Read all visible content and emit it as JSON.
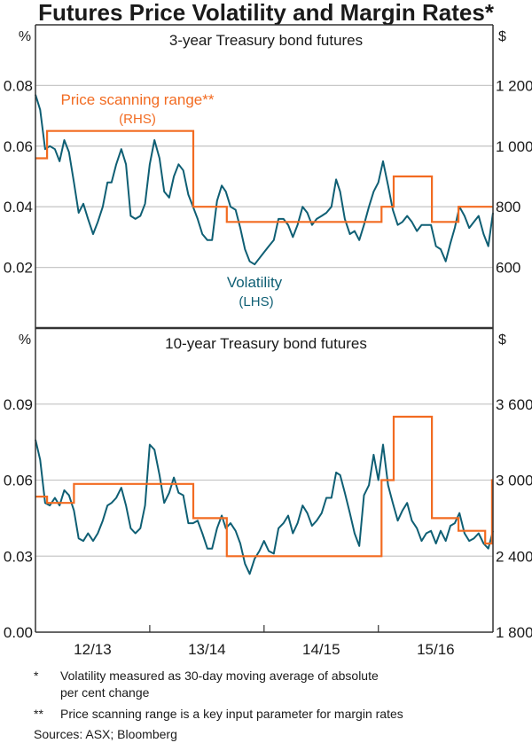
{
  "title": "Futures Price Volatility and Margin Rates*",
  "colors": {
    "volatility": "#0f5f74",
    "price_scanning_range": "#f26b21",
    "grid": "#c8c8c8",
    "axis": "#333333"
  },
  "chart_data": [
    {
      "type": "line",
      "title": "3-year Treasury bond futures",
      "left_unit": "%",
      "right_unit": "$",
      "left_ylim": [
        0,
        0.1
      ],
      "right_ylim": [
        400,
        1400
      ],
      "left_ticks": [
        "0.08",
        "0.06",
        "0.04",
        "0.02"
      ],
      "left_tick_values": [
        0.08,
        0.06,
        0.04,
        0.02
      ],
      "right_ticks": [
        "1 200",
        "1 000",
        "800",
        "600"
      ],
      "grid": true,
      "annotations": {
        "psr": "Price scanning range**",
        "psr_side": "(RHS)",
        "vol": "Volatility",
        "vol_side": "(LHS)"
      },
      "series": [
        {
          "name": "Volatility",
          "axis": "left",
          "values": [
            0.077,
            0.072,
            0.059,
            0.06,
            0.059,
            0.055,
            0.062,
            0.058,
            0.048,
            0.038,
            0.041,
            0.036,
            0.031,
            0.035,
            0.04,
            0.048,
            0.048,
            0.054,
            0.059,
            0.054,
            0.037,
            0.036,
            0.037,
            0.041,
            0.054,
            0.062,
            0.056,
            0.045,
            0.043,
            0.05,
            0.054,
            0.052,
            0.044,
            0.04,
            0.036,
            0.031,
            0.029,
            0.029,
            0.042,
            0.047,
            0.045,
            0.04,
            0.039,
            0.033,
            0.026,
            0.022,
            0.021,
            0.023,
            0.025,
            0.027,
            0.029,
            0.036,
            0.036,
            0.034,
            0.03,
            0.034,
            0.04,
            0.038,
            0.034,
            0.036,
            0.037,
            0.038,
            0.04,
            0.049,
            0.045,
            0.036,
            0.031,
            0.032,
            0.029,
            0.034,
            0.04,
            0.045,
            0.048,
            0.055,
            0.047,
            0.039,
            0.034,
            0.035,
            0.037,
            0.035,
            0.032,
            0.034,
            0.034,
            0.034,
            0.027,
            0.026,
            0.022,
            0.028,
            0.033,
            0.04,
            0.037,
            0.033,
            0.035,
            0.037,
            0.031,
            0.027,
            0.038
          ]
        },
        {
          "name": "Price scanning range",
          "axis": "right",
          "step": true,
          "steps": [
            [
              "2012-07-01",
              960
            ],
            [
              "2012-08-07",
              1050
            ],
            [
              "2013-11-17",
              800
            ],
            [
              "2014-03-04",
              750
            ],
            [
              "2015-07-11",
              800
            ],
            [
              "2015-08-19",
              900
            ],
            [
              "2015-12-19",
              750
            ],
            [
              "2016-03-13",
              800
            ]
          ]
        }
      ]
    },
    {
      "type": "line",
      "title": "10-year Treasury bond futures",
      "left_unit": "%",
      "right_unit": "$",
      "left_ylim": [
        0,
        0.12
      ],
      "right_ylim": [
        1800,
        4200
      ],
      "left_ticks": [
        "0.09",
        "0.06",
        "0.03",
        "0.00"
      ],
      "left_tick_values": [
        0.09,
        0.06,
        0.03,
        0.0
      ],
      "right_ticks": [
        "3 600",
        "3 000",
        "2 400",
        "1 800"
      ],
      "grid": true,
      "x_ticks": [
        "12/13",
        "13/14",
        "14/15",
        "15/16"
      ],
      "series": [
        {
          "name": "Volatility",
          "axis": "left",
          "values": [
            0.076,
            0.068,
            0.051,
            0.05,
            0.053,
            0.05,
            0.056,
            0.054,
            0.048,
            0.037,
            0.036,
            0.039,
            0.036,
            0.039,
            0.044,
            0.05,
            0.051,
            0.053,
            0.057,
            0.05,
            0.041,
            0.039,
            0.041,
            0.05,
            0.074,
            0.072,
            0.062,
            0.051,
            0.055,
            0.061,
            0.055,
            0.054,
            0.043,
            0.043,
            0.044,
            0.039,
            0.033,
            0.033,
            0.041,
            0.046,
            0.041,
            0.043,
            0.04,
            0.035,
            0.027,
            0.023,
            0.029,
            0.032,
            0.036,
            0.032,
            0.031,
            0.041,
            0.043,
            0.046,
            0.039,
            0.043,
            0.05,
            0.047,
            0.042,
            0.044,
            0.047,
            0.053,
            0.053,
            0.063,
            0.062,
            0.055,
            0.047,
            0.039,
            0.034,
            0.054,
            0.058,
            0.07,
            0.06,
            0.074,
            0.058,
            0.051,
            0.044,
            0.048,
            0.051,
            0.044,
            0.041,
            0.036,
            0.039,
            0.04,
            0.035,
            0.04,
            0.036,
            0.042,
            0.043,
            0.047,
            0.039,
            0.036,
            0.037,
            0.039,
            0.035,
            0.033,
            0.04
          ]
        },
        {
          "name": "Price scanning range",
          "axis": "right",
          "step": true,
          "steps": [
            [
              "2012-07-01",
              2870
            ],
            [
              "2012-08-07",
              2820
            ],
            [
              "2012-11-01",
              2970
            ],
            [
              "2013-11-17",
              2700
            ],
            [
              "2014-03-04",
              2400
            ],
            [
              "2015-07-11",
              3000
            ],
            [
              "2015-08-19",
              3500
            ],
            [
              "2015-12-19",
              2700
            ],
            [
              "2016-03-13",
              2600
            ],
            [
              "2016-06-06",
              2500
            ],
            [
              "2016-06-28",
              3000
            ]
          ]
        }
      ]
    }
  ],
  "x_range": [
    "2012-07-01",
    "2016-07-01"
  ],
  "dates": [
    "2012-07-01",
    "2012-07-16",
    "2012-08-01",
    "2012-08-16",
    "2012-09-01",
    "2012-09-16",
    "2012-10-01",
    "2012-10-16",
    "2012-11-01",
    "2012-11-16",
    "2012-12-01",
    "2012-12-16",
    "2013-01-01",
    "2013-01-16",
    "2013-02-01",
    "2013-02-16",
    "2013-03-01",
    "2013-03-16",
    "2013-04-01",
    "2013-04-16",
    "2013-05-01",
    "2013-05-16",
    "2013-06-01",
    "2013-06-16",
    "2013-07-01",
    "2013-07-16",
    "2013-08-01",
    "2013-08-16",
    "2013-09-01",
    "2013-09-16",
    "2013-10-01",
    "2013-10-16",
    "2013-11-01",
    "2013-11-16",
    "2013-12-01",
    "2013-12-16",
    "2014-01-01",
    "2014-01-16",
    "2014-02-01",
    "2014-02-16",
    "2014-03-01",
    "2014-03-16",
    "2014-04-01",
    "2014-04-16",
    "2014-05-01",
    "2014-05-16",
    "2014-06-01",
    "2014-06-16",
    "2014-07-01",
    "2014-07-16",
    "2014-08-01",
    "2014-08-16",
    "2014-09-01",
    "2014-09-16",
    "2014-10-01",
    "2014-10-16",
    "2014-11-01",
    "2014-11-16",
    "2014-12-01",
    "2014-12-16",
    "2015-01-01",
    "2015-01-16",
    "2015-02-01",
    "2015-02-16",
    "2015-03-01",
    "2015-03-16",
    "2015-04-01",
    "2015-04-16",
    "2015-05-01",
    "2015-05-16",
    "2015-06-01",
    "2015-06-16",
    "2015-07-01",
    "2015-07-16",
    "2015-08-01",
    "2015-08-16",
    "2015-09-01",
    "2015-09-16",
    "2015-10-01",
    "2015-10-16",
    "2015-11-01",
    "2015-11-16",
    "2015-12-01",
    "2015-12-16",
    "2016-01-01",
    "2016-01-16",
    "2016-02-01",
    "2016-02-16",
    "2016-03-01",
    "2016-03-16",
    "2016-04-01",
    "2016-04-16",
    "2016-05-01",
    "2016-05-16",
    "2016-06-01",
    "2016-06-16",
    "2016-07-01"
  ],
  "footnotes": [
    {
      "mark": "*",
      "lines": [
        "Volatility measured as 30-day moving average of absolute",
        "per cent change"
      ]
    },
    {
      "mark": "**",
      "lines": [
        "Price scanning range is a key input parameter for margin rates"
      ]
    }
  ],
  "sources": "Sources:  ASX; Bloomberg"
}
